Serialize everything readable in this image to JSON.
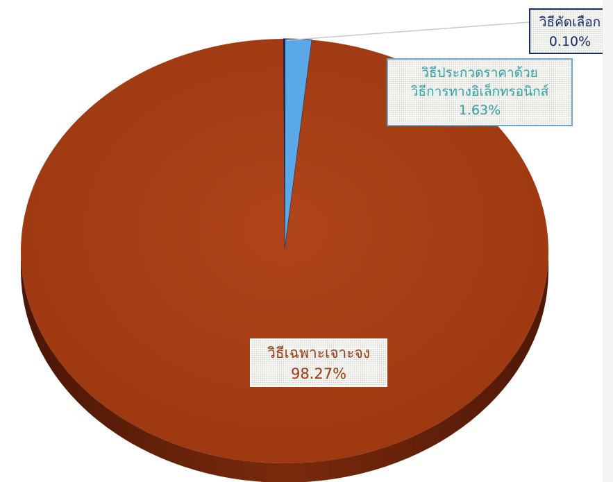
{
  "chart_data": {
    "type": "pie",
    "title": "",
    "slices": [
      {
        "label": "วิธีเฉพาะเจาะจง",
        "value": 98.27,
        "value_label": "98.27%",
        "color": "#a83c14"
      },
      {
        "label": "วิธีประกวดราคาด้วยวิธีการทางอิเล็กทรอนิกส์",
        "label_lines": [
          "วิธีประกวดราคาด้วย",
          "วิธีการทางอิเล็กทรอนิกส์"
        ],
        "value": 1.63,
        "value_label": "1.63%",
        "color": "#5aa9e6"
      },
      {
        "label": "วิธีคัดเลือก",
        "value": 0.1,
        "value_label": "0.10%",
        "color": "#1a2a6b"
      }
    ],
    "style": "3d-tilted"
  }
}
